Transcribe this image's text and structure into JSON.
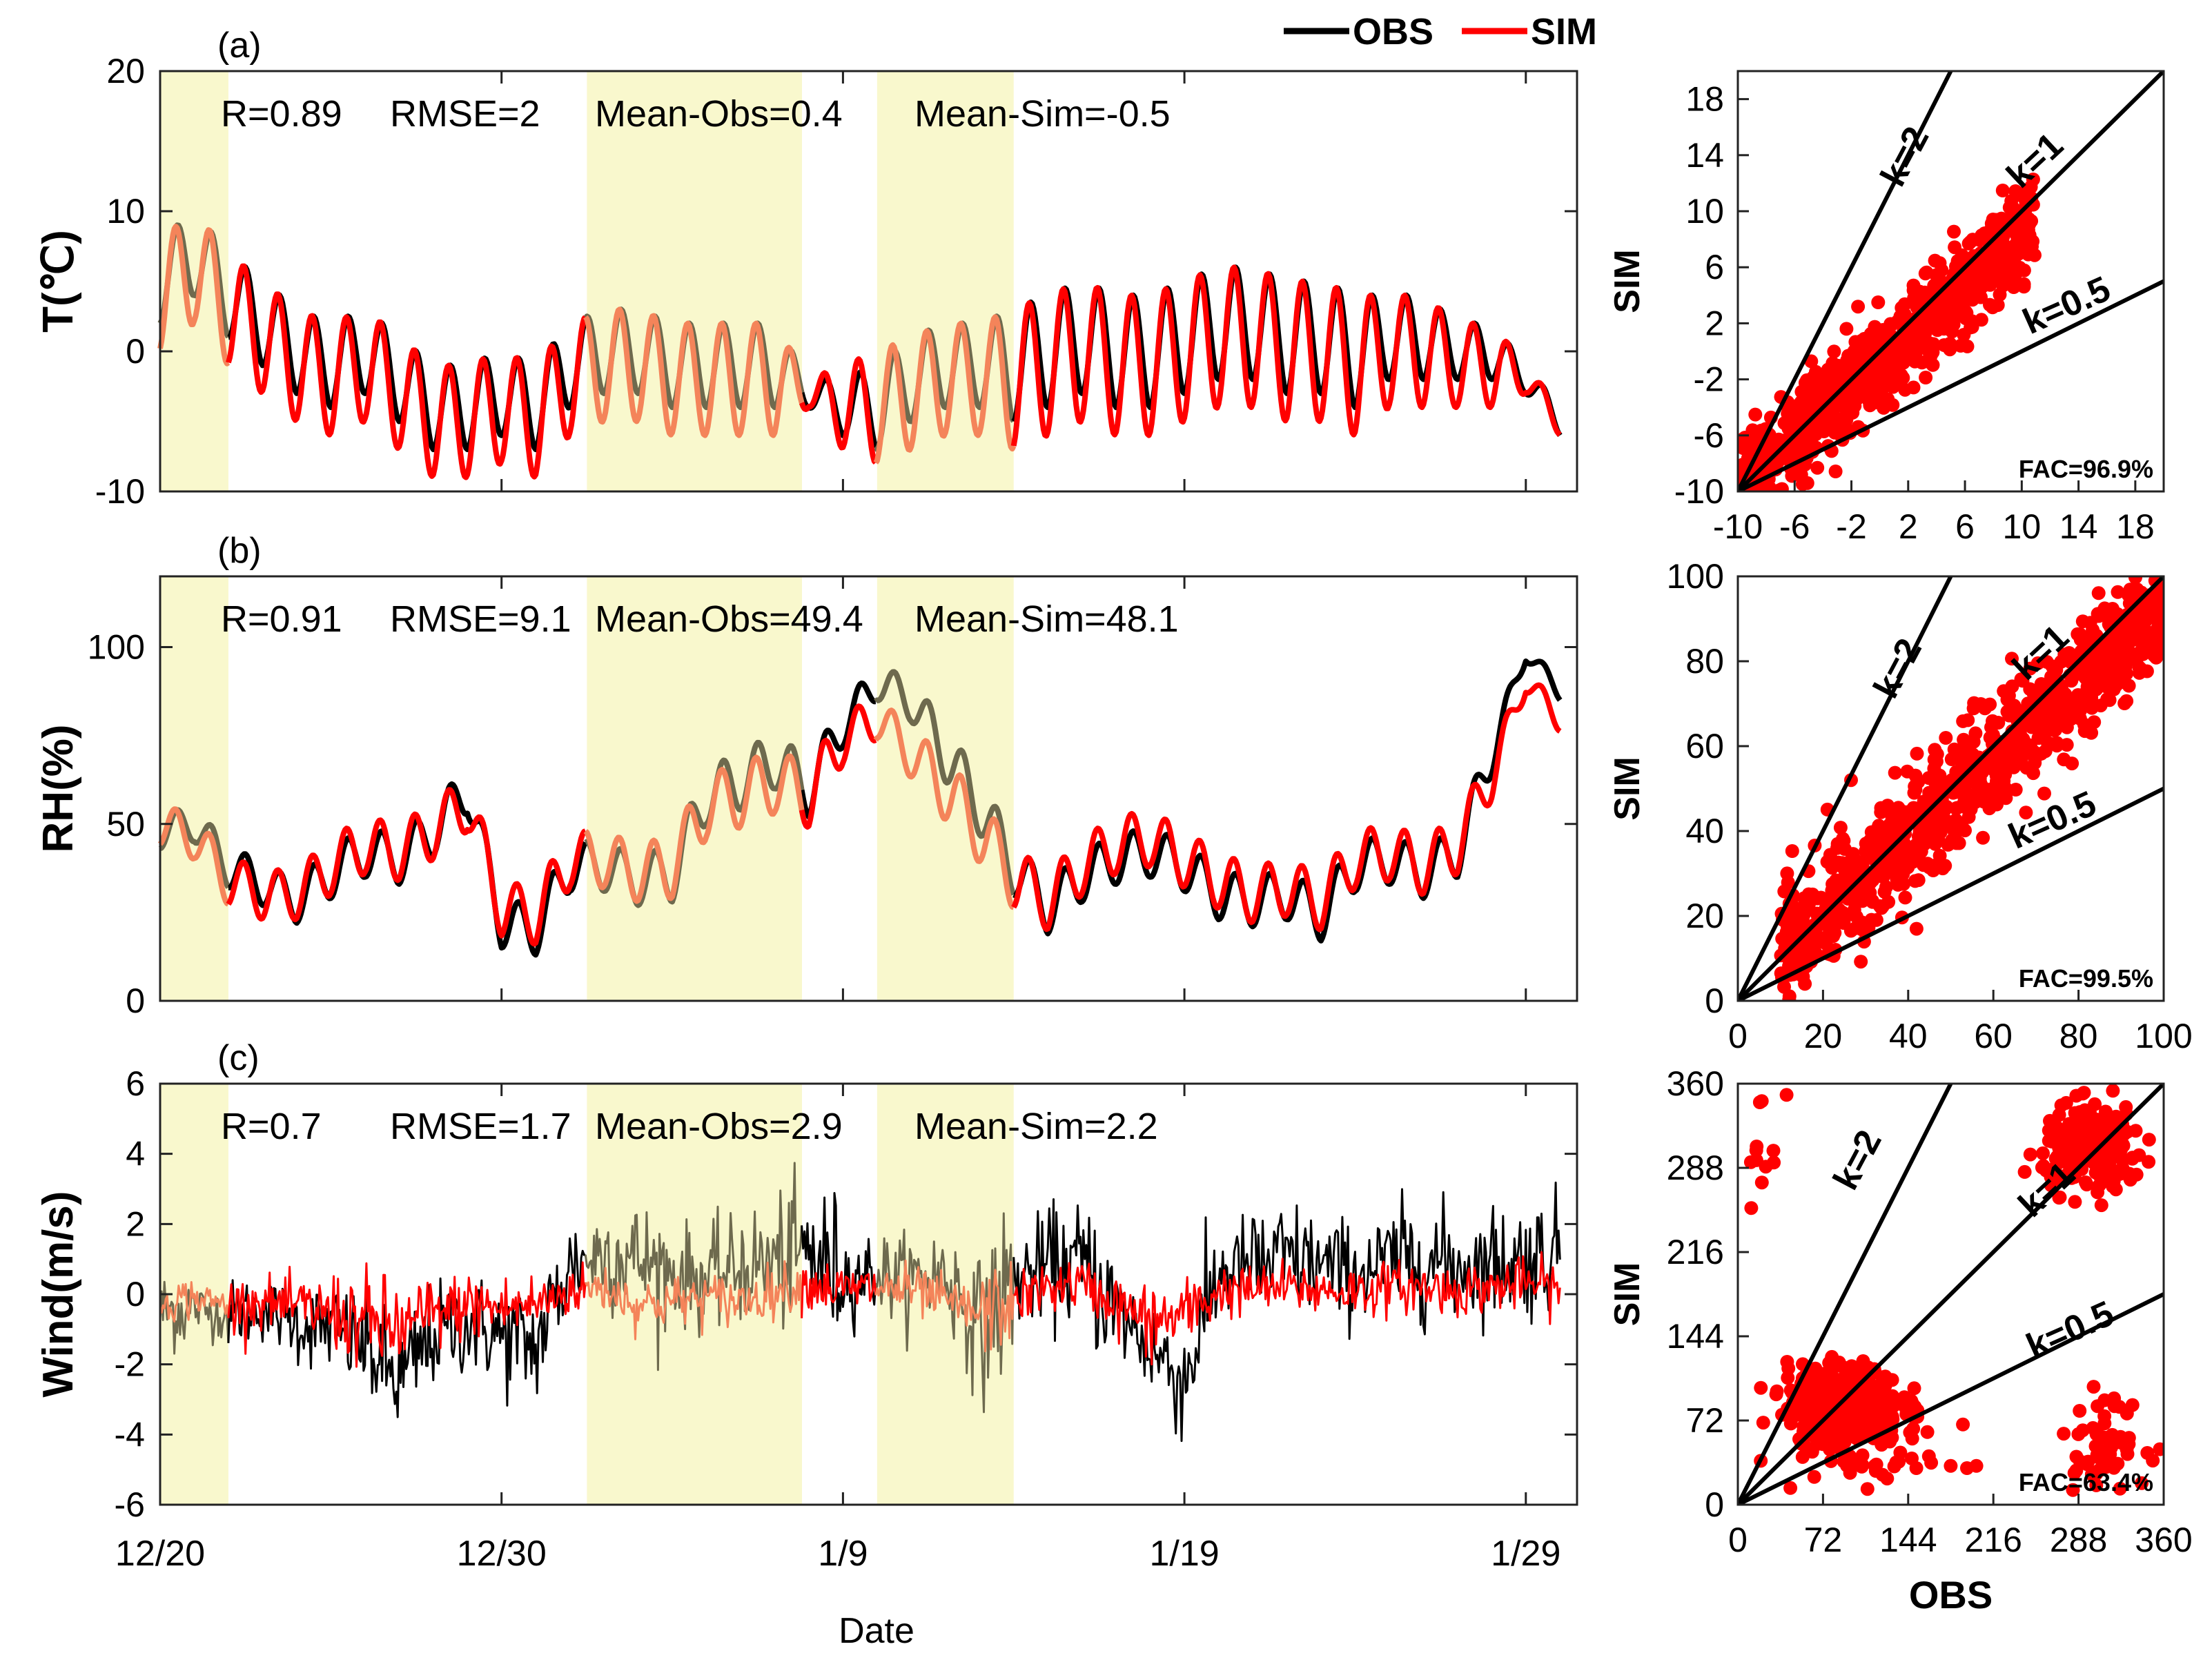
{
  "legend": {
    "obs_label": "OBS",
    "sim_label": "SIM",
    "obs_color": "#000000",
    "sim_color": "#ff0000"
  },
  "colors": {
    "highlight": "#f9f8cd",
    "obs_in_band": "#6e6a4e",
    "sim_in_band": "#f4845a",
    "scatter": "#ff0000",
    "reference_line": "#000000"
  },
  "time_axis": {
    "xlabel": "Date",
    "ticks": [
      "12/20",
      "12/30",
      "1/9",
      "1/19",
      "1/29"
    ],
    "tick_days": [
      0,
      10,
      20,
      30,
      40
    ],
    "range_days": [
      0,
      41.5
    ],
    "highlight_bands_days": [
      [
        0,
        2
      ],
      [
        12.5,
        18.8
      ],
      [
        21,
        25
      ]
    ]
  },
  "chart_data": [
    {
      "type": "line",
      "panel": "(a)",
      "ylabel": "T(℃)",
      "ylim": [
        -10,
        20
      ],
      "yticks": [
        "-10",
        "0",
        "10",
        "20"
      ],
      "stats": {
        "r": "R=0.89",
        "rmse": "RMSE=2",
        "mean_obs": "Mean-Obs=0.4",
        "mean_sim": "Mean-Sim=-0.5"
      },
      "series": [
        {
          "name": "OBS",
          "base": [
            5,
            7,
            4,
            2,
            0,
            -1,
            0,
            -2,
            -4,
            -4,
            -3,
            -4,
            -1,
            0,
            0,
            -1,
            -1,
            -1,
            -1,
            -3,
            -4,
            -4,
            -2,
            -1,
            -1,
            -1,
            0,
            1,
            0,
            0,
            1,
            2,
            2,
            1,
            1,
            0,
            1,
            1,
            0,
            0,
            -2,
            -5
          ],
          "amp": [
            3,
            3,
            3,
            3,
            3,
            3,
            3,
            3,
            3,
            3,
            3,
            3,
            3,
            3,
            3,
            3,
            3,
            3,
            3,
            1,
            2,
            3,
            3,
            3,
            3,
            4,
            4,
            4,
            4,
            4,
            4,
            4,
            4,
            4,
            4,
            4,
            3,
            3,
            2,
            2,
            1,
            1
          ]
        },
        {
          "name": "SIM",
          "base": [
            4,
            6,
            3,
            1,
            -1,
            -2,
            -1,
            -3,
            -5,
            -5,
            -4,
            -5,
            -2,
            -1,
            -1,
            -2,
            -2,
            -2,
            -2,
            -3,
            -4,
            -4,
            -3,
            -2,
            -2,
            -2,
            -1,
            0,
            -1,
            -1,
            0,
            1,
            1,
            0,
            0,
            -1,
            0,
            0,
            -1,
            -1,
            -2,
            -5
          ],
          "amp": [
            4,
            4,
            4,
            4,
            4,
            4,
            4,
            4,
            4,
            4,
            4,
            4,
            4,
            4,
            4,
            4,
            4,
            4,
            4,
            1,
            3,
            4,
            4,
            4,
            4,
            5,
            5,
            5,
            5,
            5,
            5,
            5,
            5,
            5,
            5,
            5,
            4,
            4,
            3,
            3,
            1,
            1
          ]
        }
      ]
    },
    {
      "type": "line",
      "panel": "(b)",
      "ylabel": "RH(%)",
      "ylim": [
        0,
        120
      ],
      "yticks": [
        "0",
        "50",
        "100"
      ],
      "stats": {
        "r": "R=0.91",
        "rmse": "RMSE=9.1",
        "mean_obs": "Mean-Obs=49.4",
        "mean_sim": "Mean-Sim=48.1"
      },
      "series": [
        {
          "name": "OBS",
          "base": [
            48,
            50,
            38,
            33,
            28,
            36,
            42,
            40,
            48,
            60,
            22,
            20,
            38,
            38,
            34,
            36,
            58,
            62,
            68,
            60,
            78,
            90,
            85,
            70,
            55,
            38,
            26,
            35,
            40,
            42,
            38,
            30,
            28,
            30,
            24,
            38,
            40,
            36,
            42,
            70,
            98,
            88
          ],
          "amp": [
            5,
            5,
            6,
            6,
            6,
            7,
            7,
            7,
            7,
            7,
            7,
            7,
            7,
            7,
            7,
            8,
            8,
            8,
            8,
            8,
            6,
            5,
            6,
            8,
            8,
            8,
            7,
            7,
            7,
            7,
            7,
            7,
            7,
            7,
            7,
            7,
            7,
            7,
            7,
            6,
            2,
            3
          ]
        },
        {
          "name": "SIM",
          "base": [
            50,
            46,
            34,
            30,
            30,
            38,
            44,
            42,
            48,
            56,
            26,
            24,
            40,
            40,
            36,
            38,
            55,
            58,
            62,
            58,
            74,
            80,
            70,
            60,
            48,
            35,
            28,
            38,
            44,
            46,
            40,
            34,
            30,
            32,
            28,
            40,
            42,
            38,
            44,
            64,
            90,
            80
          ],
          "amp": [
            6,
            6,
            7,
            7,
            7,
            8,
            8,
            8,
            8,
            8,
            8,
            8,
            8,
            8,
            8,
            9,
            9,
            9,
            9,
            9,
            7,
            6,
            7,
            9,
            9,
            9,
            8,
            8,
            8,
            8,
            8,
            8,
            8,
            8,
            8,
            8,
            8,
            8,
            8,
            7,
            3,
            4
          ]
        }
      ]
    },
    {
      "type": "line",
      "panel": "(c)",
      "ylabel": "Wind(m/s)",
      "ylim": [
        -6,
        6
      ],
      "yticks": [
        "-6",
        "-4",
        "-2",
        "0",
        "2",
        "4",
        "6"
      ],
      "stats": {
        "r": "R=0.7",
        "rmse": "RMSE=1.7",
        "mean_obs": "Mean-Obs=2.9",
        "mean_sim": "Mean-Sim=2.2"
      },
      "series": [
        {
          "name": "OBS",
          "base": [
            -0.5,
            -0.4,
            -0.6,
            -0.4,
            -0.8,
            -1.0,
            -1.5,
            -2.5,
            -1.2,
            -0.8,
            -1.2,
            -1.5,
            0.8,
            1.2,
            1.0,
            0.6,
            0.4,
            0.8,
            0.9,
            1.2,
            0.5,
            0.6,
            0.4,
            0.6,
            -1.0,
            0.4,
            0.8,
            0.9,
            -0.4,
            -1.5,
            -2.5,
            0.6,
            0.8,
            1.0,
            0.8,
            0.6,
            0.9,
            1.0,
            0.8,
            0.9,
            1.0,
            1.2
          ],
          "amp": [
            1.0,
            0.6,
            0.8,
            0.8,
            1.0,
            1.2,
            1.4,
            1.4,
            1.2,
            1.2,
            1.4,
            1.4,
            1.2,
            1.4,
            1.4,
            1.2,
            1.2,
            1.4,
            1.6,
            1.8,
            1.0,
            1.0,
            1.2,
            1.4,
            2.0,
            1.2,
            1.4,
            1.6,
            1.2,
            1.4,
            1.4,
            1.2,
            1.4,
            1.4,
            1.2,
            1.2,
            1.4,
            1.4,
            1.2,
            1.4,
            1.4,
            1.4
          ]
        },
        {
          "name": "SIM",
          "base": [
            -0.2,
            -0.1,
            -0.3,
            -0.2,
            -0.4,
            -0.5,
            -0.8,
            -1.0,
            -0.6,
            -0.3,
            -0.4,
            -0.3,
            0.1,
            0.2,
            -0.3,
            -0.2,
            -0.1,
            -0.2,
            0.1,
            0.3,
            0.1,
            0.2,
            0.1,
            -0.2,
            -0.6,
            -0.2,
            0.2,
            0.3,
            -0.3,
            -0.8,
            -0.6,
            0.1,
            0.1,
            0.2,
            0.1,
            0.1,
            0.2,
            0.2,
            0.1,
            0.2,
            0.3,
            0.2
          ],
          "amp": [
            0.5,
            0.4,
            0.6,
            0.6,
            0.8,
            1.0,
            1.2,
            1.0,
            0.8,
            0.8,
            0.8,
            0.6,
            0.6,
            0.6,
            0.6,
            0.6,
            0.6,
            0.6,
            0.6,
            0.6,
            0.6,
            0.6,
            0.6,
            0.6,
            1.0,
            0.6,
            0.6,
            0.6,
            0.8,
            1.0,
            0.8,
            0.6,
            0.6,
            0.6,
            0.6,
            0.6,
            0.6,
            0.6,
            0.6,
            0.6,
            0.6,
            0.6
          ]
        }
      ]
    },
    {
      "type": "scatter",
      "panel": "a-scatter",
      "xlabel": "",
      "ylabel": "SIM",
      "xlim": [
        -10,
        20
      ],
      "ylim": [
        -10,
        20
      ],
      "xticks": [
        "-10",
        "-6",
        "-2",
        "2",
        "6",
        "10",
        "14",
        "18"
      ],
      "yticks": [
        "-10",
        "-6",
        "-2",
        "2",
        "6",
        "10",
        "14",
        "18"
      ],
      "ref_lines": [
        {
          "label": "k=2",
          "slope": 2,
          "label_at": [
            2.5,
            13.5
          ],
          "rotate": -62
        },
        {
          "label": "k=1",
          "slope": 1,
          "label_at": [
            11.5,
            13
          ],
          "rotate": -43
        },
        {
          "label": "k=0.5",
          "slope": 0.5,
          "label_at": [
            13.5,
            2.5
          ],
          "rotate": -24
        }
      ],
      "fac": "FAC=96.9%",
      "cloud": {
        "x_range": [
          -10,
          11
        ],
        "y_center_slope": 0.88,
        "y_offset": -0.8,
        "spread": 1.6,
        "count": 900
      }
    },
    {
      "type": "scatter",
      "panel": "b-scatter",
      "xlabel": "",
      "ylabel": "SIM",
      "xlim": [
        0,
        100
      ],
      "ylim": [
        0,
        100
      ],
      "xticks": [
        "0",
        "20",
        "40",
        "60",
        "80",
        "100"
      ],
      "yticks": [
        "0",
        "20",
        "40",
        "60",
        "80",
        "100"
      ],
      "ref_lines": [
        {
          "label": "k=2",
          "slope": 2,
          "label_at": [
            40,
            77
          ],
          "rotate": -62
        },
        {
          "label": "k=1",
          "slope": 1,
          "label_at": [
            73,
            80
          ],
          "rotate": -43
        },
        {
          "label": "k=0.5",
          "slope": 0.5,
          "label_at": [
            75,
            40
          ],
          "rotate": -24
        }
      ],
      "fac": "FAC=99.5%",
      "cloud": {
        "x_range": [
          10,
          100
        ],
        "y_center_slope": 0.9,
        "y_offset": 3,
        "spread": 7,
        "count": 900
      }
    },
    {
      "type": "scatter",
      "panel": "c-scatter",
      "xlabel": "OBS",
      "ylabel": "SIM",
      "xlim": [
        0,
        360
      ],
      "ylim": [
        0,
        360
      ],
      "xticks": [
        "0",
        "72",
        "144",
        "216",
        "288",
        "360"
      ],
      "yticks": [
        "0",
        "72",
        "144",
        "216",
        "288",
        "360"
      ],
      "ref_lines": [
        {
          "label": "k=2",
          "slope": 2,
          "label_at": [
            110,
            290
          ],
          "rotate": -62
        },
        {
          "label": "k=1",
          "slope": 1,
          "label_at": [
            268,
            262
          ],
          "rotate": -43
        },
        {
          "label": "k=0.5",
          "slope": 0.5,
          "label_at": [
            285,
            140
          ],
          "rotate": -24
        }
      ],
      "fac": "FAC=63.4%",
      "clusters": [
        {
          "cx": 90,
          "cy": 85,
          "sx": 40,
          "sy": 28,
          "count": 420
        },
        {
          "cx": 300,
          "cy": 305,
          "sx": 35,
          "sy": 30,
          "count": 240
        },
        {
          "cx": 310,
          "cy": 55,
          "sx": 30,
          "sy": 30,
          "count": 60
        },
        {
          "cx": 20,
          "cy": 300,
          "sx": 15,
          "sy": 40,
          "count": 12
        },
        {
          "cx": 120,
          "cy": 40,
          "sx": 60,
          "sy": 25,
          "count": 40
        }
      ]
    }
  ]
}
